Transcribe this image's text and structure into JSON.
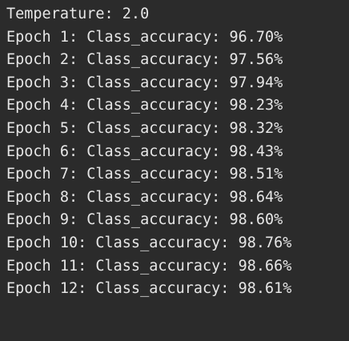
{
  "terminal": {
    "background": "#2b2b2b",
    "foreground": "#e6e6e6",
    "lines": [
      "Temperature: 2.0",
      "Epoch 1: Class_accuracy: 96.70%",
      "Epoch 2: Class_accuracy: 97.56%",
      "Epoch 3: Class_accuracy: 97.94%",
      "Epoch 4: Class_accuracy: 98.23%",
      "Epoch 5: Class_accuracy: 98.32%",
      "Epoch 6: Class_accuracy: 98.43%",
      "Epoch 7: Class_accuracy: 98.51%",
      "Epoch 8: Class_accuracy: 98.64%",
      "Epoch 9: Class_accuracy: 98.60%",
      "Epoch 10: Class_accuracy: 98.76%",
      "Epoch 11: Class_accuracy: 98.66%",
      "Epoch 12: Class_accuracy: 98.61%"
    ]
  }
}
